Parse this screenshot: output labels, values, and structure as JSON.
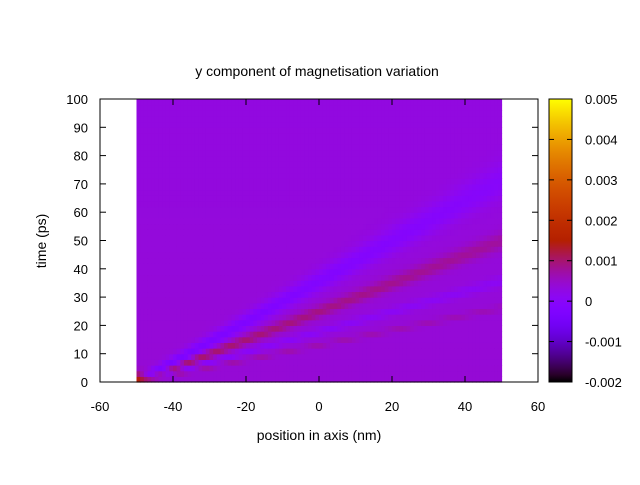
{
  "chart_data": {
    "type": "heatmap",
    "title": "y component of magnetisation variation",
    "xlabel": "position in axis (nm)",
    "ylabel": "time (ps)",
    "xlim": [
      -60,
      60
    ],
    "ylim": [
      0,
      100
    ],
    "x_ticks": [
      -60,
      -40,
      -20,
      0,
      20,
      40,
      60
    ],
    "x_tick_labels": [
      "-60",
      "-40",
      "-20",
      "0",
      "20",
      "40",
      "60"
    ],
    "y_ticks": [
      0,
      10,
      20,
      30,
      40,
      50,
      60,
      70,
      80,
      90,
      100
    ],
    "y_tick_labels": [
      "0",
      "10",
      "20",
      "30",
      "40",
      "50",
      "60",
      "70",
      "80",
      "90",
      "100"
    ],
    "data_extent": {
      "x": [
        -50,
        50
      ],
      "y": [
        0,
        100
      ]
    },
    "colorbar": {
      "range": [
        -0.002,
        0.005
      ],
      "ticks": [
        -0.002,
        -0.001,
        0,
        0.001,
        0.002,
        0.003,
        0.004,
        0.005
      ],
      "tick_labels": [
        "-0.002",
        "-0.001",
        "0",
        "0.001",
        "0.002",
        "0.003",
        "0.004",
        "0.005"
      ],
      "colormap": "gnuplot-pm3d-traditional"
    },
    "field_summary": {
      "background_value_early": 0.0004,
      "background_value_late": 0.0003,
      "origin_spike": {
        "x": -50,
        "y": 0,
        "value": 0.002
      },
      "ray_origin_x": -50,
      "ray_slopes_nm_per_ps": [
        1.4,
        2.0,
        2.8,
        3.8
      ],
      "ray_values": [
        -0.0008,
        0.0007,
        -0.0004,
        0.0003
      ]
    },
    "grid": false,
    "legend": "none"
  }
}
